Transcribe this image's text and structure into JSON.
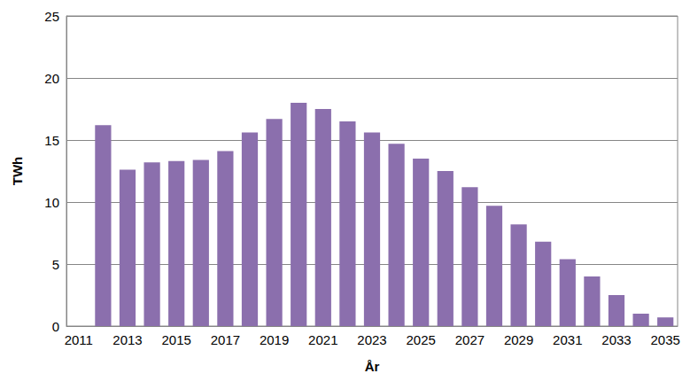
{
  "chart_data": {
    "type": "bar",
    "x_label": "År",
    "y_label": "TWh",
    "categories": [
      "2011",
      null,
      "2013",
      null,
      "2015",
      null,
      "2017",
      null,
      "2019",
      null,
      "2021",
      null,
      "2023",
      null,
      "2025",
      null,
      "2027",
      null,
      "2029",
      null,
      "2031",
      null,
      "2033",
      null,
      "2035"
    ],
    "values": [
      null,
      16.2,
      12.6,
      13.2,
      13.3,
      13.4,
      14.1,
      15.6,
      16.7,
      18.0,
      17.5,
      16.5,
      15.6,
      14.7,
      13.5,
      12.5,
      11.2,
      9.7,
      8.2,
      6.8,
      5.4,
      4.0,
      2.5,
      1.0,
      0.7
    ],
    "color": "#8b6fad",
    "ylim": [
      0,
      25
    ],
    "yticks": [
      0,
      5,
      10,
      15,
      20,
      25
    ],
    "grid": true
  }
}
